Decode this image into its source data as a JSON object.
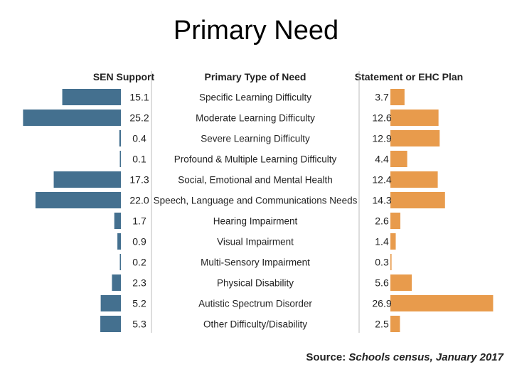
{
  "slide": {
    "title": "Primary Need"
  },
  "chart_data": {
    "type": "bar",
    "headers": {
      "left": "SEN Support",
      "center": "Primary Type of Need",
      "right": "Statement or EHC Plan"
    },
    "categories": [
      "Specific Learning Difficulty",
      "Moderate Learning Difficulty",
      "Severe Learning Difficulty",
      "Profound & Multiple Learning Difficulty",
      "Social, Emotional and Mental Health",
      "Speech, Language and Communications Needs",
      "Hearing Impairment",
      "Visual Impairment",
      "Multi-Sensory Impairment",
      "Physical Disability",
      "Autistic Spectrum Disorder",
      "Other Difficulty/Disability"
    ],
    "series": [
      {
        "name": "SEN Support",
        "color": "#44708f",
        "values": [
          15.1,
          25.2,
          0.4,
          0.1,
          17.3,
          22.0,
          1.7,
          0.9,
          0.2,
          2.3,
          5.2,
          5.3
        ],
        "labels": [
          "15.1",
          "25.2",
          "0.4",
          "0.1",
          "17.3",
          "22.0",
          "1.7",
          "0.9",
          "0.2",
          "2.3",
          "5.2",
          "5.3"
        ]
      },
      {
        "name": "Statement or EHC Plan",
        "color": "#e89b4c",
        "values": [
          3.7,
          12.6,
          12.9,
          4.4,
          12.4,
          14.3,
          2.6,
          1.4,
          0.3,
          5.6,
          26.9,
          2.5
        ],
        "labels": [
          "3.7",
          "12.6",
          "12.9",
          "4.4",
          "12.4",
          "14.3",
          "2.6",
          "1.4",
          "0.3",
          "5.6",
          "26.9",
          "2.5"
        ]
      }
    ],
    "source": {
      "prefix": "Source:",
      "text": "Schools census, January 2017"
    }
  }
}
